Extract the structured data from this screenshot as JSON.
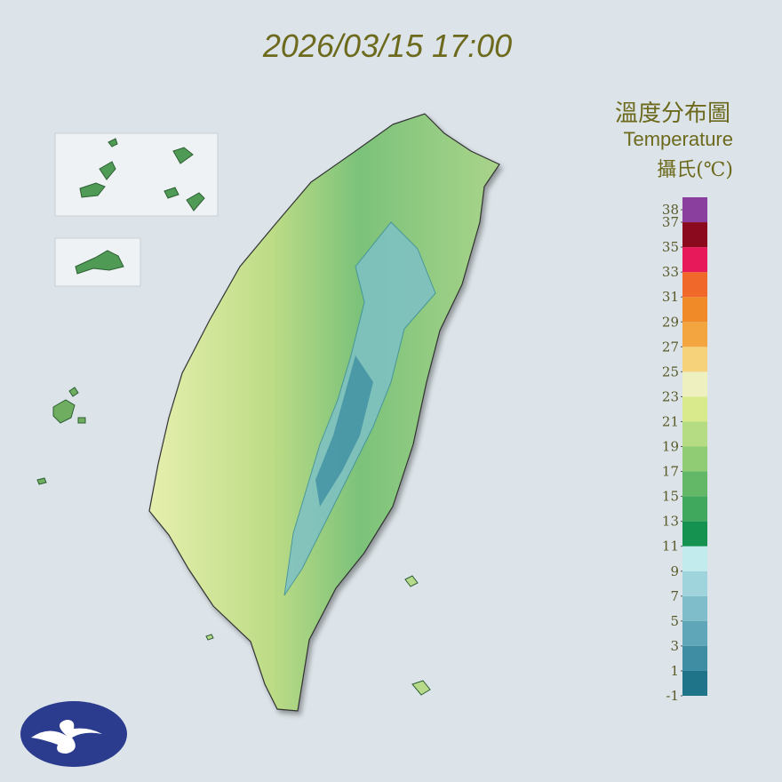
{
  "header": {
    "title": "2026/03/15 17:00"
  },
  "legend": {
    "title": "溫度分布圖",
    "subtitle": "Temperature",
    "unit": "攝氏(℃)",
    "range": [
      -1,
      39
    ],
    "ticks": [
      38,
      37,
      35,
      33,
      31,
      29,
      27,
      25,
      23,
      21,
      19,
      17,
      15,
      13,
      11,
      9,
      7,
      5,
      3,
      1,
      -1
    ],
    "colors": [
      "#1f7489",
      "#3e8da3",
      "#5ea6b8",
      "#7fbdcb",
      "#9fd4dc",
      "#c2ebee",
      "#15924f",
      "#3fa85c",
      "#62b866",
      "#8fcc73",
      "#b5dc82",
      "#d9ea8c",
      "#eef0c0",
      "#f6d27a",
      "#f3a640",
      "#f08a28",
      "#f0682a",
      "#e8195a",
      "#8b0a1e",
      "#8a3f9e"
    ]
  }
}
